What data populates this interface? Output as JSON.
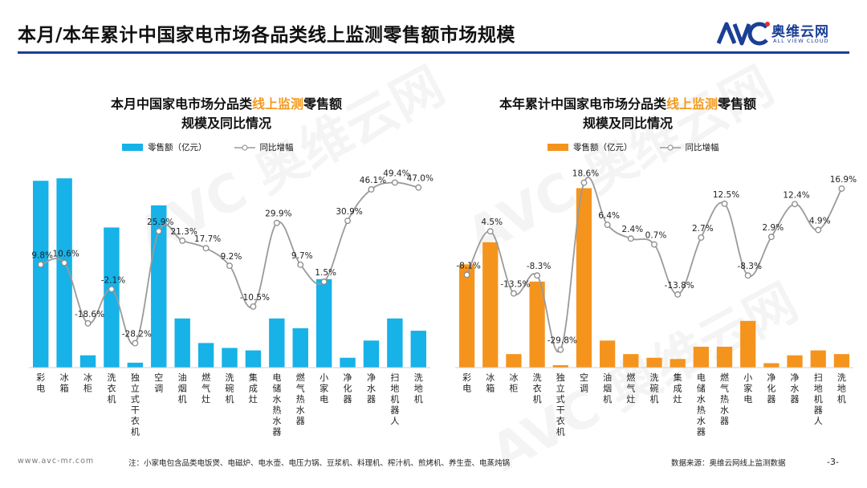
{
  "header": {
    "title": "本月/本年累计中国家电市场各品类线上监测零售额市场规模",
    "logo_cn": "奥维云网",
    "logo_en": "ALL VIEW CLOUD"
  },
  "watermark": "AVC 奥维云网",
  "chart_data": [
    {
      "type": "bar",
      "title_pre": "本月中国家电市场分品类",
      "title_highlight": "线上监测",
      "title_post": "零售额",
      "title_line2": "规模及同比情况",
      "legend_bar": "零售额（亿元）",
      "legend_line": "同比增幅",
      "bar_color": "#16b2e8",
      "categories": [
        "彩电",
        "冰箱",
        "冰柜",
        "洗衣机",
        "独立式干衣机",
        "空调",
        "油烟机",
        "燃气灶",
        "洗碗机",
        "集成灶",
        "电储水热水器",
        "燃气热水器",
        "小家电",
        "净化器",
        "净水器",
        "扫地机器人",
        "洗地机"
      ],
      "series": [
        {
          "name": "零售额（亿元）",
          "kind": "bar",
          "values": [
            76,
            77,
            5,
            57,
            2,
            66,
            20,
            10,
            8,
            7,
            20,
            16,
            36,
            4,
            11,
            20,
            15
          ]
        },
        {
          "name": "同比增幅",
          "kind": "line",
          "values": [
            9.8,
            10.6,
            -18.6,
            -2.1,
            -28.2,
            25.9,
            21.3,
            17.7,
            9.2,
            -10.5,
            29.9,
            9.7,
            1.5,
            30.9,
            46.1,
            49.4,
            47.0
          ]
        }
      ],
      "line_labels": [
        "9.8%",
        "10.6%",
        "-18.6%",
        "-2.1%",
        "-28.2%",
        "25.9%",
        "21.3%",
        "17.7%",
        "9.2%",
        "-10.5%",
        "29.9%",
        "9.7%",
        "1.5%",
        "30.9%",
        "46.1%",
        "49.4%",
        "47.0%"
      ],
      "bar_ylim": [
        0,
        80
      ],
      "line_ylim": [
        -40,
        55
      ]
    },
    {
      "type": "bar",
      "title_pre": "本年累计中国家电市场分品类",
      "title_highlight": "线上监测",
      "title_post": "零售额",
      "title_line2": "规模及同比情况",
      "legend_bar": "零售额（亿元）",
      "legend_line": "同比增幅",
      "bar_color": "#f5941d",
      "categories": [
        "彩电",
        "冰箱",
        "冰柜",
        "洗衣机",
        "独立式干衣机",
        "空调",
        "油烟机",
        "燃气灶",
        "洗碗机",
        "集成灶",
        "电储水热水器",
        "燃气热水器",
        "小家电",
        "净化器",
        "净水器",
        "扫地机器人",
        "洗地机"
      ],
      "series": [
        {
          "name": "零售额（亿元）",
          "kind": "bar",
          "values": [
            420,
            510,
            55,
            350,
            10,
            730,
            110,
            55,
            40,
            35,
            85,
            85,
            190,
            18,
            50,
            70,
            55
          ]
        },
        {
          "name": "同比增幅",
          "kind": "line",
          "values": [
            -8.1,
            4.5,
            -13.5,
            -8.3,
            -29.8,
            18.6,
            6.4,
            2.4,
            0.7,
            -13.8,
            2.7,
            12.5,
            -8.3,
            2.9,
            12.4,
            4.9,
            16.9
          ]
        }
      ],
      "line_labels": [
        "-8.1%",
        "4.5%",
        "-13.5%",
        "-8.3%",
        "-29.8%",
        "18.6%",
        "6.4%",
        "2.4%",
        "0.7%",
        "-13.8%",
        "2.7%",
        "12.5%",
        "-8.3%",
        "2.9%",
        "12.4%",
        "4.9%",
        "16.9%"
      ],
      "bar_ylim": [
        0,
        800
      ],
      "line_ylim": [
        -35,
        22
      ]
    }
  ],
  "footer": {
    "url": "www.avc-mr.com",
    "note": "注：小家电包含品类电饭煲、电磁炉、电水壶、电压力锅、豆浆机、料理机、榨汁机、煎烤机、养生壶、电蒸炖锅",
    "source": "数据来源：奥维云网线上监测数据",
    "page": "-3-"
  }
}
